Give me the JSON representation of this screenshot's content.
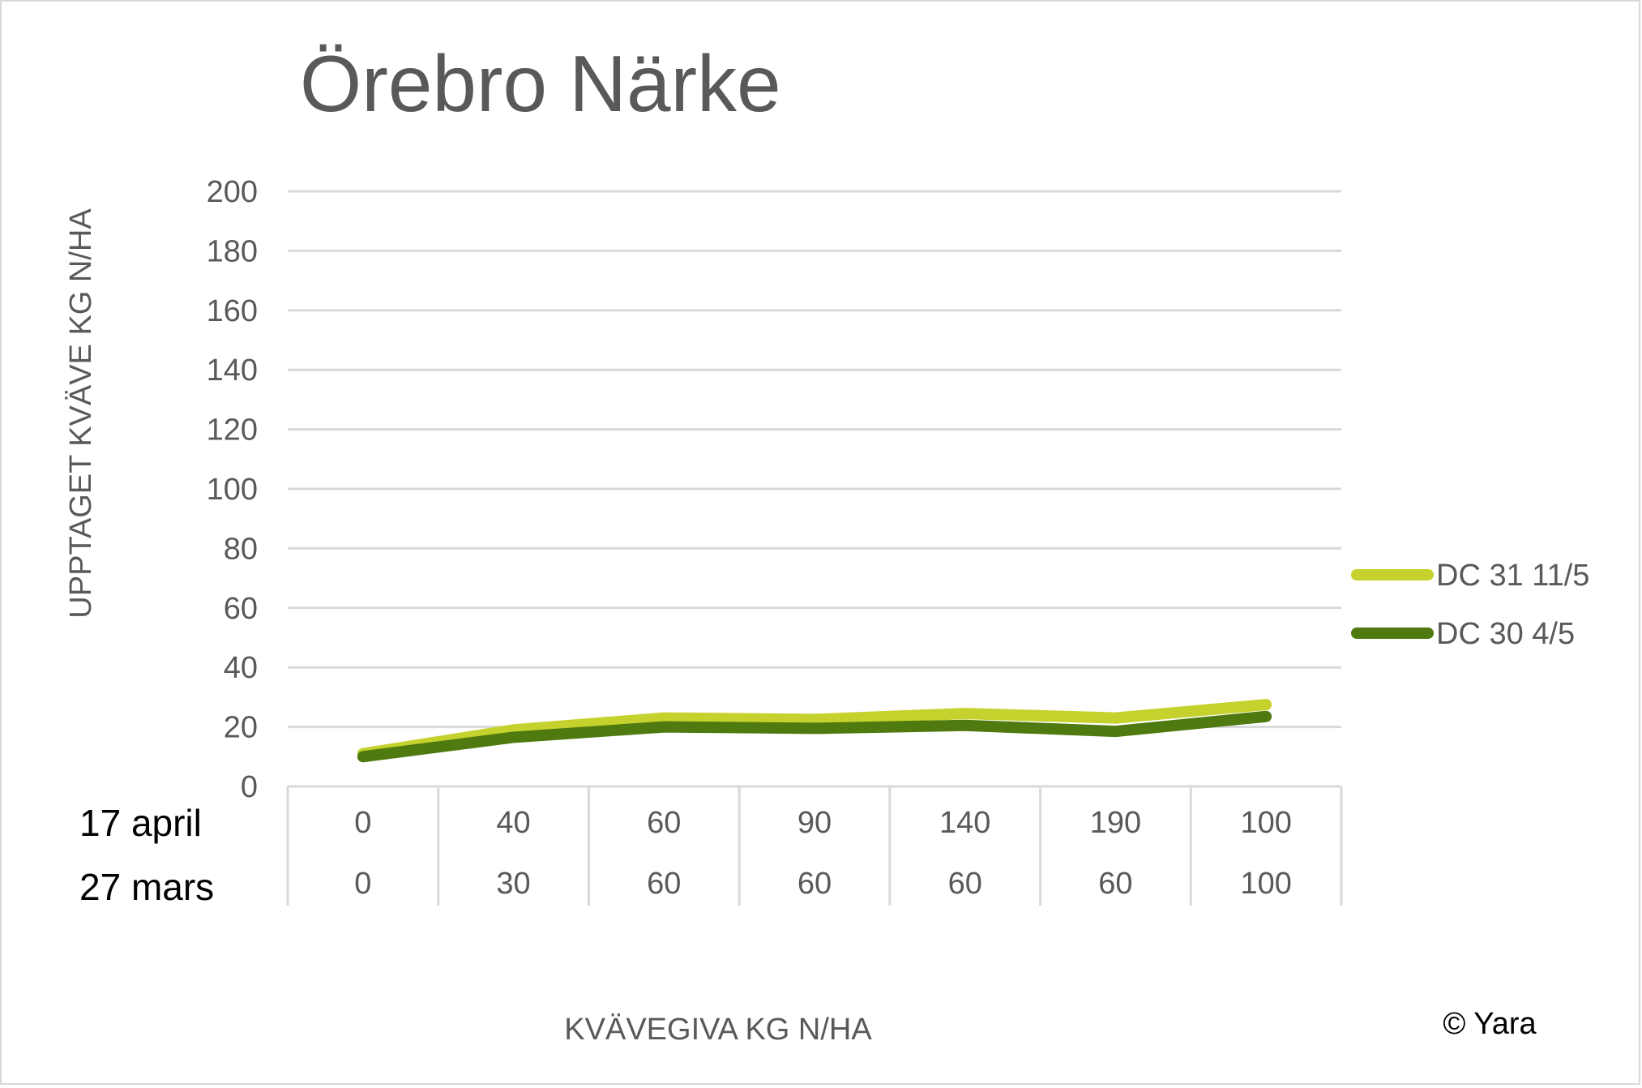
{
  "copyright": "© Yara",
  "colors": {
    "series1": "#c5d12c",
    "series2": "#4f7a0f",
    "grid": "#d9d9d9",
    "text": "#595959"
  },
  "chart_data": {
    "type": "line",
    "title": "Örebro Närke",
    "xlabel": "KVÄVEGIVA  KG N/HA",
    "ylabel": "UPPTAGET KVÄVE KG N/HA",
    "ylim": [
      0,
      200
    ],
    "yticks": [
      "0",
      "20",
      "40",
      "60",
      "80",
      "100",
      "120",
      "140",
      "160",
      "180",
      "200"
    ],
    "grid": true,
    "legend_position": "right",
    "category_rows": [
      {
        "label": "17 april",
        "values": [
          "0",
          "40",
          "60",
          "90",
          "140",
          "190",
          "100"
        ]
      },
      {
        "label": "27 mars",
        "values": [
          "0",
          "30",
          "60",
          "60",
          "60",
          "60",
          "100"
        ]
      }
    ],
    "series": [
      {
        "name": "DC 31 11/5",
        "values": [
          11,
          19,
          23,
          22.5,
          24.5,
          23,
          27.5
        ]
      },
      {
        "name": "DC 30 4/5",
        "values": [
          10,
          16.5,
          20,
          19.5,
          20.5,
          18.5,
          23.5
        ]
      }
    ]
  }
}
